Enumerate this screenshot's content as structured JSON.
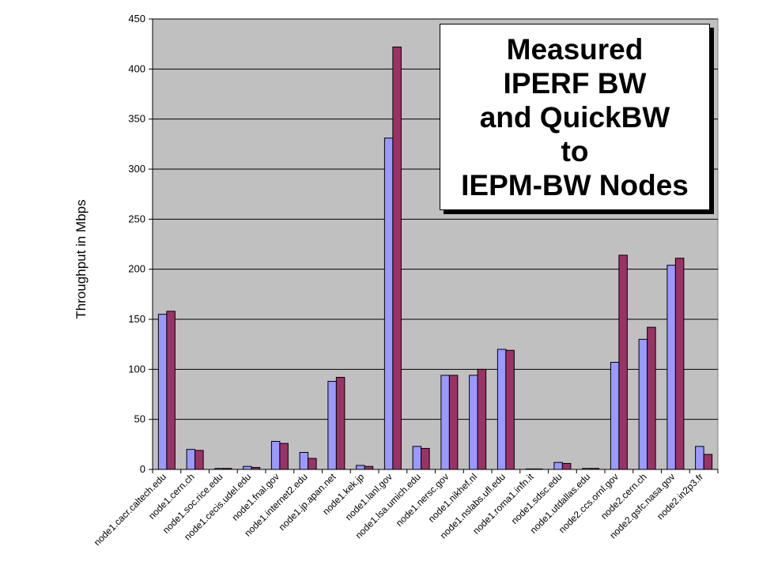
{
  "chart_data": {
    "type": "bar",
    "title_lines": [
      "Measured",
      "IPERF BW",
      "and QuickBW",
      "to",
      "IEPM-BW Nodes"
    ],
    "ylabel": "Throughput in Mbps",
    "xlabel": "",
    "ylim": [
      0,
      450
    ],
    "yticks": [
      "0",
      "50",
      "100",
      "150",
      "200",
      "250",
      "300",
      "350",
      "400",
      "450"
    ],
    "grid": true,
    "legend": "none",
    "plot_background": "#c0c0c0",
    "categories": [
      "node1.cacr.caltech.edu",
      "node1.cern.ch",
      "node1.soc.rice.edu",
      "node1.cecis.udel.edu",
      "node1.fnal.gov",
      "node1.internet2.edu",
      "node1.jp.apan.net",
      "node1.kek.jp",
      "node1.lanl.gov",
      "node1.lsa.umich.edu",
      "node1.nersc.gov",
      "node1.nikhef.nl",
      "node1.nslabs.ufl.edu",
      "node1.roma1.infn.it",
      "node1.sdsc.edu",
      "node1.utdallas.edu",
      "node2.ccs.ornl.gov",
      "node2.cern.ch",
      "node2.gsfc.nasa.gov",
      "node2.in2p3.fr"
    ],
    "series": [
      {
        "color": "#9999ff",
        "values": [
          155,
          20,
          1,
          3,
          28,
          17,
          88,
          4,
          331,
          23,
          94,
          94,
          120,
          0.5,
          7,
          1,
          107,
          130,
          204,
          23
        ]
      },
      {
        "color": "#993366",
        "values": [
          158,
          19,
          1,
          2,
          26,
          11,
          92,
          3,
          422,
          21,
          94,
          100,
          119,
          0.5,
          6,
          1,
          214,
          142,
          211,
          15
        ]
      }
    ]
  }
}
